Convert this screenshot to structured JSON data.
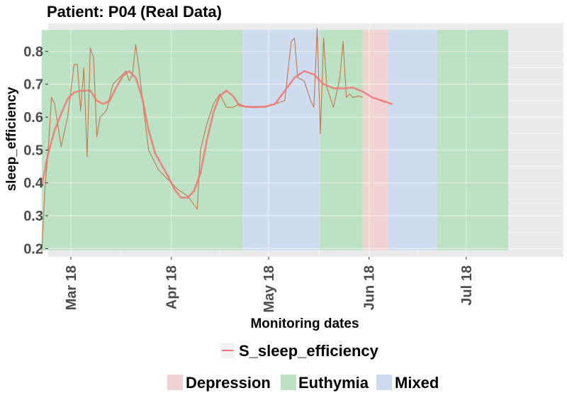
{
  "chart_data": {
    "type": "line",
    "title": "Patient: P04 (Real Data)",
    "xlabel": "Monitoring dates",
    "ylabel": "sleep_efficiency",
    "x_range": [
      "2018-02-22",
      "2018-07-31"
    ],
    "ylim": [
      0.175,
      0.885
    ],
    "y_ticks": [
      0.2,
      0.3,
      0.4,
      0.5,
      0.6,
      0.7,
      0.8
    ],
    "y_tick_labels": [
      "0.2",
      "0.3",
      "0.4",
      "0.5",
      "0.6",
      "0.7",
      "0.8"
    ],
    "x_ticks": [
      {
        "date": "2018-03-01",
        "label": "Mar 18"
      },
      {
        "date": "2018-04-01",
        "label": "Apr 18"
      },
      {
        "date": "2018-05-01",
        "label": "May 18"
      },
      {
        "date": "2018-06-01",
        "label": "Jun 18"
      },
      {
        "date": "2018-07-01",
        "label": "Jul 18"
      }
    ],
    "grid": true,
    "background": "#ebebeb",
    "bands_y_range": [
      0.195,
      0.865
    ],
    "bands": [
      {
        "state": "Euthymia",
        "start": "2018-02-20",
        "end": "2018-04-23"
      },
      {
        "state": "Mixed",
        "start": "2018-04-23",
        "end": "2018-05-17"
      },
      {
        "state": "Euthymia",
        "start": "2018-05-17",
        "end": "2018-05-30"
      },
      {
        "state": "Depression",
        "start": "2018-05-30",
        "end": "2018-06-07"
      },
      {
        "state": "Mixed",
        "start": "2018-06-07",
        "end": "2018-06-22"
      },
      {
        "state": "Euthymia",
        "start": "2018-06-22",
        "end": "2018-07-14"
      }
    ],
    "state_colors": {
      "Depression": "#f0d3d3",
      "Euthymia": "#bde1c5",
      "Mixed": "#cfdcf0"
    },
    "series": [
      {
        "name": "S_sleep_efficiency",
        "color": "#f07572",
        "kind": "smoothed",
        "x": [
          "2018-02-20",
          "2018-02-21",
          "2018-02-22",
          "2018-02-24",
          "2018-02-26",
          "2018-02-28",
          "2018-03-02",
          "2018-03-04",
          "2018-03-07",
          "2018-03-09",
          "2018-03-11",
          "2018-03-13",
          "2018-03-15",
          "2018-03-17",
          "2018-03-19",
          "2018-03-21",
          "2018-03-23",
          "2018-03-25",
          "2018-03-27",
          "2018-03-29",
          "2018-03-31",
          "2018-04-02",
          "2018-04-04",
          "2018-04-06",
          "2018-04-08",
          "2018-04-10",
          "2018-04-12",
          "2018-04-14",
          "2018-04-16",
          "2018-04-18",
          "2018-04-20",
          "2018-04-22",
          "2018-04-24",
          "2018-04-27",
          "2018-04-30",
          "2018-05-03",
          "2018-05-06",
          "2018-05-09",
          "2018-05-12",
          "2018-05-15",
          "2018-05-18",
          "2018-05-21",
          "2018-05-24",
          "2018-05-27",
          "2018-05-30",
          "2018-06-02",
          "2018-06-05",
          "2018-06-08"
        ],
        "values": [
          0.39,
          0.44,
          0.49,
          0.56,
          0.61,
          0.655,
          0.675,
          0.68,
          0.681,
          0.65,
          0.64,
          0.65,
          0.69,
          0.725,
          0.74,
          0.72,
          0.66,
          0.56,
          0.49,
          0.455,
          0.42,
          0.38,
          0.355,
          0.355,
          0.375,
          0.43,
          0.53,
          0.615,
          0.665,
          0.68,
          0.665,
          0.635,
          0.632,
          0.63,
          0.632,
          0.64,
          0.68,
          0.72,
          0.74,
          0.73,
          0.7,
          0.688,
          0.687,
          0.69,
          0.678,
          0.66,
          0.65,
          0.64
        ]
      },
      {
        "name": "sleep_efficiency",
        "color": "#c0784a",
        "kind": "raw",
        "x": [
          "2018-02-20",
          "2018-02-21",
          "2018-02-22",
          "2018-02-23",
          "2018-02-24",
          "2018-02-26",
          "2018-02-28",
          "2018-03-02",
          "2018-03-03",
          "2018-03-04",
          "2018-03-05",
          "2018-03-06",
          "2018-03-07",
          "2018-03-08",
          "2018-03-09",
          "2018-03-10",
          "2018-03-12",
          "2018-03-14",
          "2018-03-16",
          "2018-03-18",
          "2018-03-19",
          "2018-03-20",
          "2018-03-21",
          "2018-03-22",
          "2018-03-23",
          "2018-03-25",
          "2018-03-26",
          "2018-03-28",
          "2018-03-31",
          "2018-04-03",
          "2018-04-06",
          "2018-04-09",
          "2018-04-10",
          "2018-04-12",
          "2018-04-14",
          "2018-04-16",
          "2018-04-18",
          "2018-04-20",
          "2018-04-22",
          "2018-04-24",
          "2018-04-27",
          "2018-04-30",
          "2018-05-03",
          "2018-05-06",
          "2018-05-08",
          "2018-05-09",
          "2018-05-10",
          "2018-05-12",
          "2018-05-14",
          "2018-05-15",
          "2018-05-16",
          "2018-05-17",
          "2018-05-18",
          "2018-05-19",
          "2018-05-21",
          "2018-05-23",
          "2018-05-24",
          "2018-05-25",
          "2018-05-26",
          "2018-05-27",
          "2018-05-29",
          "2018-05-30"
        ],
        "values": [
          0.19,
          0.38,
          0.5,
          0.66,
          0.64,
          0.51,
          0.6,
          0.76,
          0.76,
          0.62,
          0.75,
          0.48,
          0.81,
          0.78,
          0.54,
          0.6,
          0.62,
          0.7,
          0.72,
          0.74,
          0.71,
          0.73,
          0.82,
          0.75,
          0.66,
          0.5,
          0.48,
          0.44,
          0.41,
          0.38,
          0.36,
          0.32,
          0.5,
          0.58,
          0.64,
          0.67,
          0.63,
          0.63,
          0.64,
          0.63,
          0.632,
          0.63,
          0.64,
          0.65,
          0.83,
          0.84,
          0.72,
          0.71,
          0.65,
          0.63,
          0.87,
          0.55,
          0.84,
          0.69,
          0.63,
          0.72,
          0.83,
          0.66,
          0.67,
          0.66,
          0.664,
          0.66
        ]
      }
    ],
    "legend": {
      "placement": "bottom",
      "series_entries": [
        "S_sleep_efficiency"
      ],
      "state_entries": [
        "Depression",
        "Euthymia",
        "Mixed"
      ]
    }
  }
}
